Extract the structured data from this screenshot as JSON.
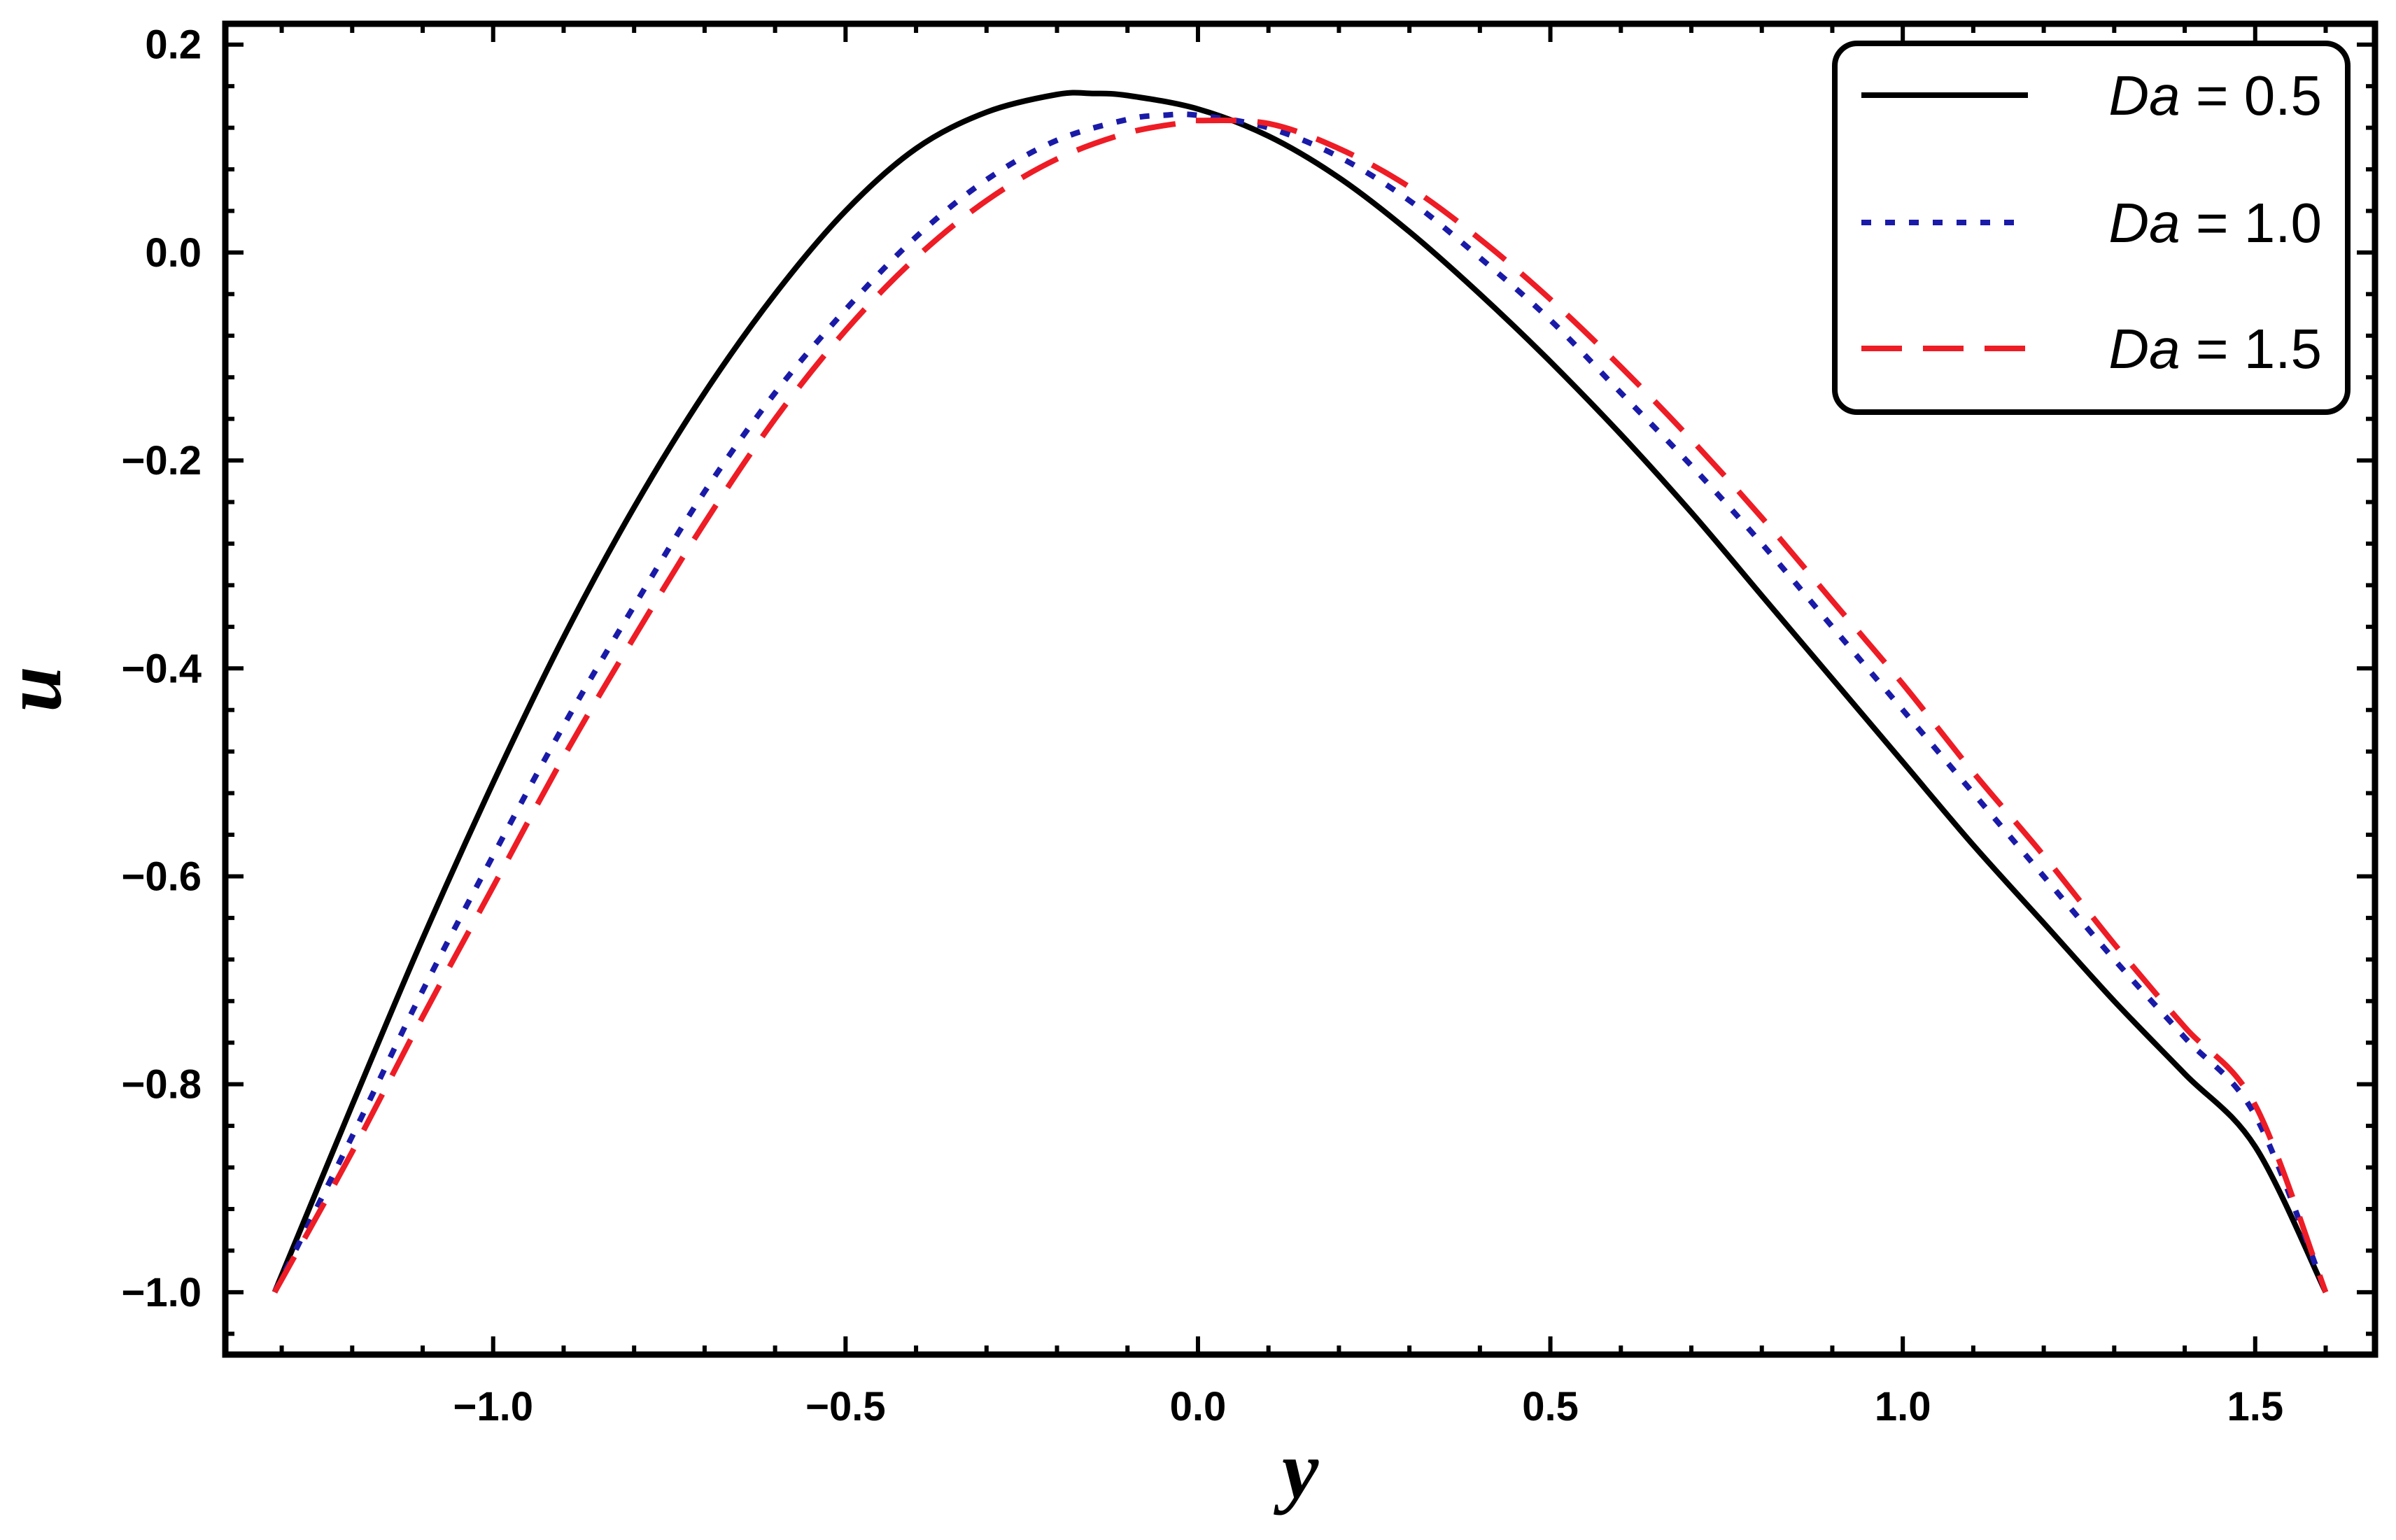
{
  "chart_data": {
    "type": "line",
    "title": "",
    "xlabel": "y",
    "ylabel": "u",
    "xlim": [
      -1.38,
      1.67
    ],
    "ylim": [
      -1.06,
      0.22
    ],
    "xticks": [
      -1.0,
      -0.5,
      0.0,
      0.5,
      1.0,
      1.5
    ],
    "xtick_labels": [
      "−1.0",
      "−0.5",
      "0.0",
      "0.5",
      "1.0",
      "1.5"
    ],
    "yticks": [
      0.2,
      0.0,
      -0.2,
      -0.4,
      -0.6,
      -0.8,
      -1.0
    ],
    "ytick_labels": [
      "0.2",
      "0.0",
      "−0.2",
      "−0.4",
      "−0.6",
      "−0.8",
      "−1.0"
    ],
    "legend_position": "top-right",
    "series": [
      {
        "name": "Da = 0.5",
        "legend_var": "Da",
        "legend_value": "= 0.5",
        "color": "#000000",
        "style": "solid",
        "x": [
          -1.31,
          -1.2,
          -1.1,
          -1.0,
          -0.9,
          -0.8,
          -0.7,
          -0.6,
          -0.5,
          -0.4,
          -0.3,
          -0.2,
          -0.15,
          -0.1,
          0.0,
          0.1,
          0.2,
          0.3,
          0.4,
          0.5,
          0.6,
          0.7,
          0.8,
          0.9,
          1.0,
          1.1,
          1.2,
          1.3,
          1.4,
          1.5,
          1.6
        ],
        "values": [
          -1.0,
          -0.82,
          -0.66,
          -0.51,
          -0.37,
          -0.245,
          -0.135,
          -0.04,
          0.04,
          0.1,
          0.135,
          0.152,
          0.153,
          0.151,
          0.138,
          0.112,
          0.072,
          0.02,
          -0.04,
          -0.105,
          -0.175,
          -0.25,
          -0.33,
          -0.41,
          -0.49,
          -0.57,
          -0.645,
          -0.72,
          -0.79,
          -0.86,
          -1.0
        ]
      },
      {
        "name": "Da = 1.0",
        "legend_var": "Da",
        "legend_value": "= 1.0",
        "color": "#1a1aa8",
        "style": "dotted",
        "x": [
          -1.31,
          -1.2,
          -1.1,
          -1.0,
          -0.9,
          -0.8,
          -0.7,
          -0.6,
          -0.5,
          -0.4,
          -0.3,
          -0.2,
          -0.1,
          -0.05,
          0.0,
          0.1,
          0.2,
          0.3,
          0.4,
          0.5,
          0.6,
          0.7,
          0.8,
          0.9,
          1.0,
          1.1,
          1.2,
          1.3,
          1.4,
          1.5,
          1.6
        ],
        "values": [
          -1.0,
          -0.85,
          -0.71,
          -0.58,
          -0.455,
          -0.34,
          -0.23,
          -0.135,
          -0.055,
          0.015,
          0.07,
          0.108,
          0.128,
          0.132,
          0.132,
          0.12,
          0.092,
          0.05,
          -0.005,
          -0.065,
          -0.135,
          -0.205,
          -0.28,
          -0.36,
          -0.44,
          -0.52,
          -0.6,
          -0.68,
          -0.755,
          -0.83,
          -1.0
        ]
      },
      {
        "name": "Da = 1.5",
        "legend_var": "Da",
        "legend_value": "= 1.5",
        "color": "#ee1c25",
        "style": "dashed",
        "x": [
          -1.31,
          -1.2,
          -1.1,
          -1.0,
          -0.9,
          -0.8,
          -0.7,
          -0.6,
          -0.5,
          -0.4,
          -0.3,
          -0.2,
          -0.1,
          -0.02,
          0.0,
          0.1,
          0.2,
          0.3,
          0.4,
          0.5,
          0.6,
          0.7,
          0.8,
          0.9,
          1.0,
          1.1,
          1.2,
          1.3,
          1.4,
          1.5,
          1.6
        ],
        "values": [
          -1.0,
          -0.865,
          -0.735,
          -0.61,
          -0.485,
          -0.37,
          -0.26,
          -0.16,
          -0.075,
          -0.005,
          0.05,
          0.09,
          0.115,
          0.125,
          0.127,
          0.124,
          0.1,
          0.063,
          0.013,
          -0.045,
          -0.11,
          -0.18,
          -0.255,
          -0.335,
          -0.415,
          -0.5,
          -0.58,
          -0.665,
          -0.745,
          -0.82,
          -1.0
        ]
      }
    ]
  }
}
